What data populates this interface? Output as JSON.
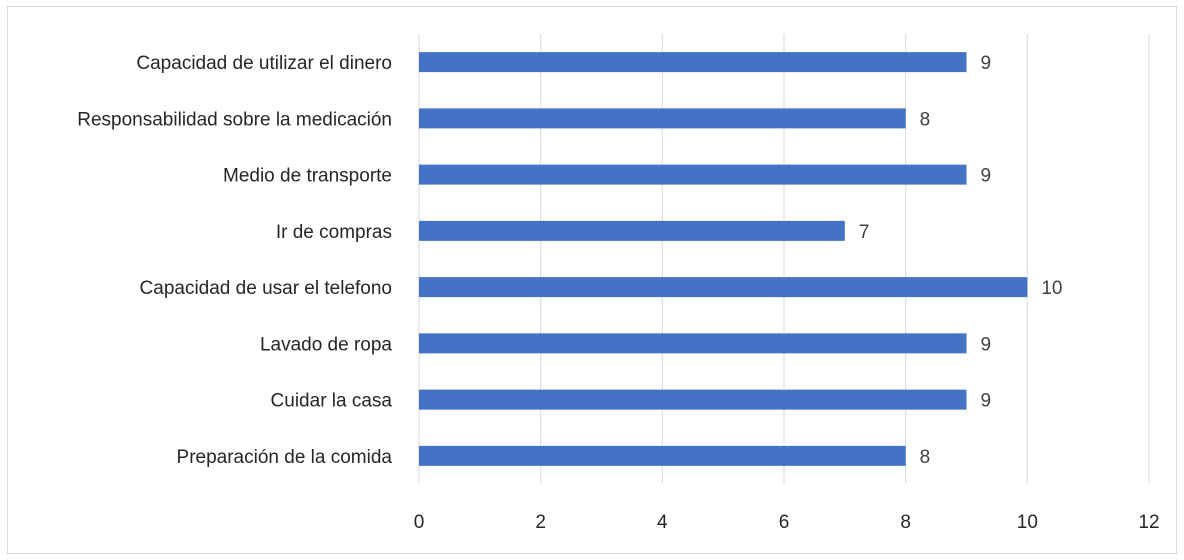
{
  "chart_data": {
    "type": "bar",
    "orientation": "horizontal",
    "categories": [
      "Capacidad de utilizar el dinero",
      "Responsabilidad sobre la medicación",
      "Medio de transporte",
      "Ir de compras",
      "Capacidad de usar el telefono",
      "Lavado de ropa",
      "Cuidar la casa",
      "Preparación de la comida"
    ],
    "values": [
      9,
      8,
      9,
      7,
      10,
      9,
      9,
      8
    ],
    "xlim": [
      0,
      12
    ],
    "xticks": [
      "0",
      "2",
      "4",
      "6",
      "8",
      "10",
      "12"
    ],
    "title": "",
    "xlabel": "",
    "ylabel": "",
    "grid": "vertical",
    "legend": "none",
    "data_labels": true,
    "bar_color": "#4472c4"
  }
}
